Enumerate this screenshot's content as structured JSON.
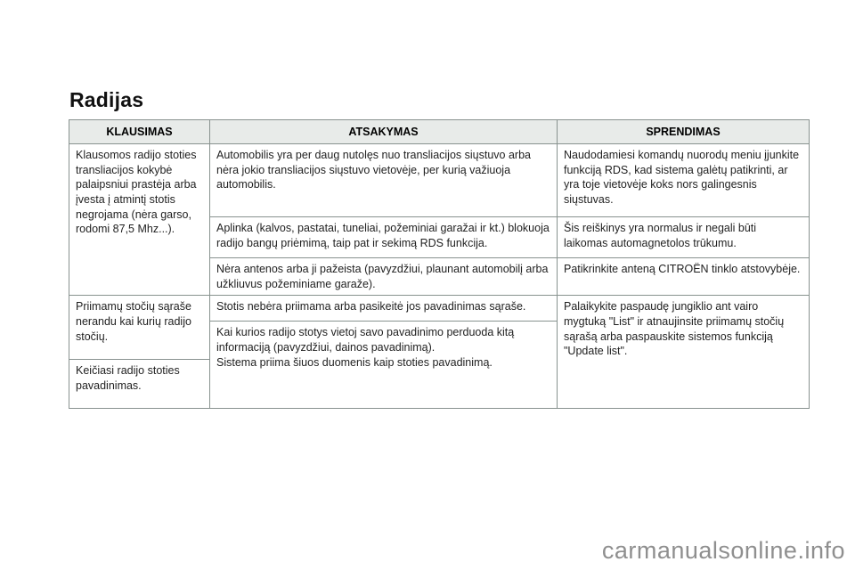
{
  "page": {
    "title": "Radijas",
    "watermark": "carmanualsonline.info"
  },
  "colors": {
    "table_border": "#88928f",
    "header_bg": "#e8ebe9",
    "watermark_text": "#8f8f8f"
  },
  "table": {
    "headers": [
      {
        "label": "KLAUSIMAS"
      },
      {
        "label": "ATSAKYMAS"
      },
      {
        "label": "SPRENDIMAS"
      }
    ],
    "cells": {
      "q1": "Klausomos radijo stoties transliacijos kokybė palaipsniui prastėja arba įvesta į atmintį stotis negrojama (nėra garso, rodomi 87,5 Mhz...).",
      "a1": "Automobilis yra per daug nutolęs nuo transliacijos siųstuvo arba nėra jokio transliacijos siųstuvo vietovėje, per kurią važiuoja automobilis.",
      "s1": "Naudodamiesi komandų nuorodų meniu įjunkite funkciją RDS, kad sistema galėtų patikrinti, ar yra toje vietovėje koks nors galingesnis siųstuvas.",
      "a2": "Aplinka (kalvos, pastatai, tuneliai, požeminiai garažai ir kt.) blokuoja radijo bangų priėmimą, taip pat ir sekimą RDS funkcija.",
      "s2": "Šis reiškinys yra normalus ir negali būti laikomas automagnetolos trūkumu.",
      "a3": "Nėra antenos arba ji pažeista (pavyzdžiui, plaunant automobilį arba užkliuvus požeminiame garaže).",
      "s3": "Patikrinkite anteną CITROËN tinklo atstovybėje.",
      "q2": "Priimamų stočių sąraše nerandu kai kurių radijo stočių.",
      "a4": "Stotis nebėra priimama arba pasikeitė jos pavadinimas sąraše.",
      "s4": "Palaikykite paspaudę jungiklio ant vairo mygtuką \"List\" ir atnaujinsite priimamų stočių sąrašą arba paspauskite sistemos funkciją \"Update list\".",
      "a5_line1": "Kai kurios radijo stotys vietoj savo pavadinimo perduoda kitą informaciją (pavyzdžiui, dainos pavadinimą).",
      "a5_line2": "Sistema priima šiuos duomenis kaip stoties pavadinimą.",
      "q3": "Keičiasi radijo stoties pavadinimas."
    }
  }
}
